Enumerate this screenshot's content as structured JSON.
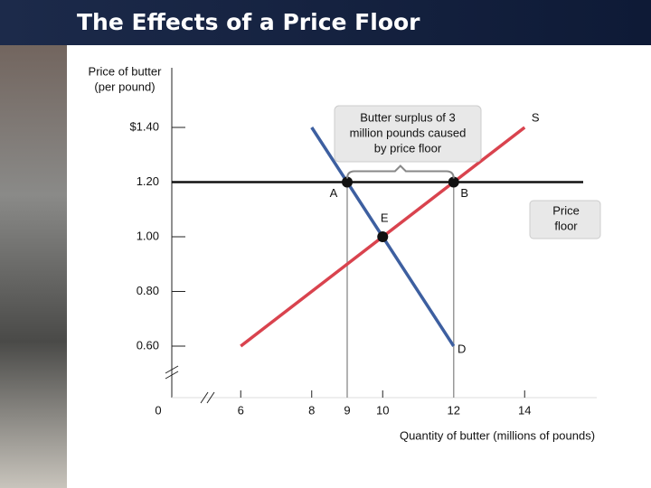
{
  "chart_data": {
    "type": "line",
    "title": "The Effects of a Price Floor",
    "y_label": [
      "Price of butter",
      "(per pound)"
    ],
    "x_label": "Quantity of butter (millions of pounds)",
    "origin_label": "0",
    "xlim": [
      5,
      16
    ],
    "ylim": [
      0.5,
      1.6
    ],
    "xticks": [
      6,
      8,
      9,
      10,
      12,
      14
    ],
    "yticks": [
      {
        "value": 1.4,
        "label": "$1.40"
      },
      {
        "value": 1.2,
        "label": "1.20"
      },
      {
        "value": 1.0,
        "label": "1.00"
      },
      {
        "value": 0.8,
        "label": "0.80"
      },
      {
        "value": 0.6,
        "label": "0.60"
      }
    ],
    "series": [
      {
        "name": "S",
        "color": "#d9434e",
        "x": [
          6,
          14
        ],
        "values": [
          0.6,
          1.4
        ]
      },
      {
        "name": "D",
        "color": "#3d5fa0",
        "x": [
          8,
          12
        ],
        "values": [
          1.4,
          0.6
        ]
      }
    ],
    "points": [
      {
        "label": "A",
        "x": 9,
        "y": 1.2
      },
      {
        "label": "B",
        "x": 12,
        "y": 1.2
      },
      {
        "label": "E",
        "x": 10,
        "y": 1.0
      }
    ],
    "price_floor": {
      "value": 1.2,
      "label": [
        "Price",
        "floor"
      ]
    },
    "surplus_note": [
      "Butter surplus of 3",
      "million pounds caused",
      "by  price floor"
    ]
  }
}
